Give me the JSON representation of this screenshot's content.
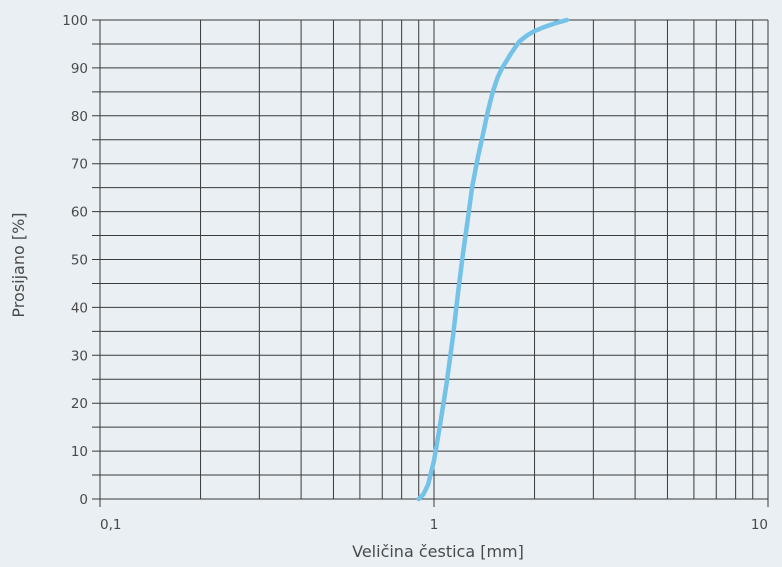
{
  "colors": {
    "background": "#e9eff2",
    "grid": "#3a3a3a",
    "curve": "#74c2e8",
    "text": "#4a4a4a"
  },
  "chart_data": {
    "type": "line",
    "title": "",
    "xlabel": "Veličina čestica [mm]",
    "ylabel": "Prosijano [%]",
    "x_scale": "log",
    "xlim": [
      0.1,
      10
    ],
    "ylim": [
      0,
      100
    ],
    "x_tick_labels": [
      {
        "value": 0.1,
        "label": "0,1"
      },
      {
        "value": 1,
        "label": "1"
      },
      {
        "value": 10,
        "label": "10"
      }
    ],
    "y_tick_labels": [
      {
        "value": 0,
        "label": "0"
      },
      {
        "value": 10,
        "label": "10"
      },
      {
        "value": 20,
        "label": "20"
      },
      {
        "value": 30,
        "label": "30"
      },
      {
        "value": 40,
        "label": "40"
      },
      {
        "value": 50,
        "label": "50"
      },
      {
        "value": 60,
        "label": "60"
      },
      {
        "value": 70,
        "label": "70"
      },
      {
        "value": 80,
        "label": "80"
      },
      {
        "value": 90,
        "label": "90"
      },
      {
        "value": 100,
        "label": "100"
      }
    ],
    "grid": true,
    "series": [
      {
        "x": [
          0.9,
          0.93,
          0.96,
          1.0,
          1.04,
          1.09,
          1.14,
          1.18,
          1.22,
          1.26,
          1.3,
          1.35,
          1.4,
          1.45,
          1.5,
          1.55,
          1.6,
          1.7,
          1.8,
          1.9,
          2.0,
          2.15,
          2.3,
          2.5
        ],
        "y": [
          0,
          1,
          3,
          8,
          15,
          24,
          34,
          43,
          51,
          58,
          65,
          71,
          76,
          81,
          85,
          88,
          90,
          93,
          95.5,
          96.8,
          97.7,
          98.6,
          99.3,
          100
        ]
      }
    ]
  }
}
